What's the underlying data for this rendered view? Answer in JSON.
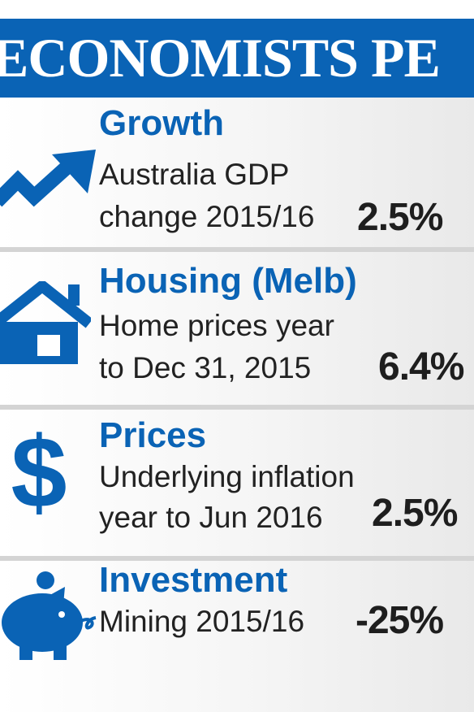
{
  "banner": {
    "title": "ECONOMISTS PE"
  },
  "rows": [
    {
      "icon": "trend-up-arrow-icon",
      "title": "Growth",
      "desc": [
        "Australia GDP",
        "change 2015/16"
      ],
      "value": "2.5%"
    },
    {
      "icon": "house-icon",
      "title": "Housing (Melb)",
      "desc": [
        "Home prices year",
        "to Dec 31, 2015"
      ],
      "value": "6.4%"
    },
    {
      "icon": "dollar-sign-icon",
      "title": "Prices",
      "desc": [
        "Underlying inflation",
        "year to Jun 2016"
      ],
      "value": "2.5%"
    },
    {
      "icon": "piggy-bank-icon",
      "title": "Investment",
      "desc": [
        "Mining 2015/16"
      ],
      "value": "-25%"
    }
  ],
  "colors": {
    "accent": "#0a63b5",
    "text": "#222222",
    "background": "#ffffff",
    "separator": "#d4d4d4"
  }
}
